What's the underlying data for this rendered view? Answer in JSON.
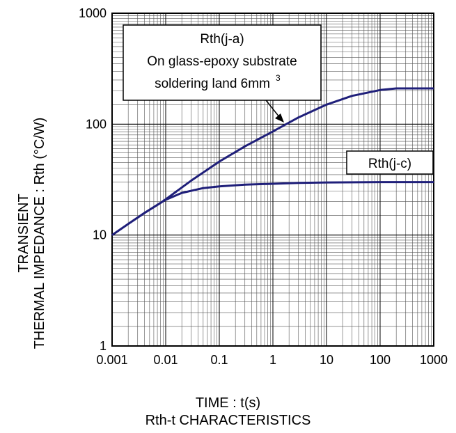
{
  "chart_data": {
    "type": "line",
    "x_scale": "log",
    "y_scale": "log",
    "xlim": [
      0.001,
      1000
    ],
    "ylim": [
      1,
      1000
    ],
    "grid": true,
    "x_ticks": [
      "0.001",
      "0.01",
      "0.1",
      "1",
      "10",
      "100",
      "1000"
    ],
    "y_ticks": [
      "1",
      "10",
      "100",
      "1000"
    ],
    "ylabel_line1": "TRANSIENT",
    "ylabel_line2": "THERMAL IMPEDANCE : Rth (°C/W)",
    "xlabel": "TIME : t(s)",
    "title": "Rth-t CHARACTERISTICS",
    "line_color": "#1f1f7a",
    "annotations": [
      {
        "lines": [
          "Rth(j-a)",
          "On glass-epoxy substrate",
          "soldering land 6mm",
          "3"
        ]
      },
      {
        "lines": [
          "Rth(j-c)"
        ]
      }
    ],
    "series": [
      {
        "x": [
          0.001,
          0.002,
          0.004,
          0.008,
          0.01,
          0.03,
          0.1,
          0.3,
          1,
          3,
          10,
          30,
          100,
          200,
          1000
        ],
        "y": [
          10,
          12.6,
          15.8,
          19.5,
          21,
          31,
          46,
          63,
          86,
          115,
          150,
          180,
          203,
          210,
          210
        ]
      },
      {
        "x": [
          0.001,
          0.002,
          0.004,
          0.008,
          0.01,
          0.02,
          0.05,
          0.1,
          0.3,
          1,
          3,
          10,
          100,
          1000
        ],
        "y": [
          10,
          12.6,
          15.8,
          19.5,
          20.8,
          24,
          26.5,
          27.5,
          28.5,
          29,
          29.5,
          29.8,
          30,
          30
        ]
      }
    ]
  }
}
